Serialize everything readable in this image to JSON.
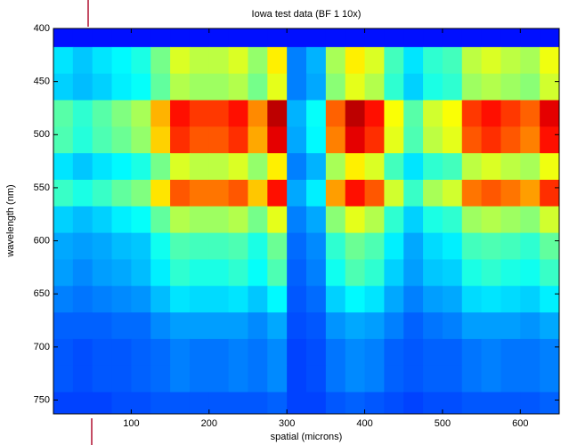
{
  "chart_data": {
    "type": "heatmap",
    "title": "Iowa test data (BF 1 10x)",
    "x_label": "spatial (microns)",
    "y_label": "wavelength (nm)",
    "colormap": "jet",
    "y_reversed": true,
    "xlim": [
      0,
      650
    ],
    "ylim": [
      400,
      763
    ],
    "xticks": [
      100,
      200,
      300,
      400,
      500,
      600
    ],
    "yticks": [
      400,
      450,
      500,
      550,
      600,
      650,
      700,
      750
    ],
    "x": [
      12.5,
      37.5,
      62.5,
      87.5,
      112.5,
      137.5,
      162.5,
      187.5,
      212.5,
      237.5,
      262.5,
      287.5,
      312.5,
      337.5,
      362.5,
      387.5,
      412.5,
      437.5,
      462.5,
      487.5,
      512.5,
      537.5,
      562.5,
      587.5,
      612.5,
      637.5
    ],
    "y": [
      405,
      430,
      455,
      480,
      505,
      530,
      555,
      580,
      605,
      630,
      655,
      680,
      705,
      730,
      755
    ],
    "z": [
      [
        0.14,
        0.14,
        0.14,
        0.14,
        0.14,
        0.14,
        0.14,
        0.14,
        0.14,
        0.14,
        0.14,
        0.14,
        0.14,
        0.14,
        0.14,
        0.14,
        0.14,
        0.14,
        0.14,
        0.14,
        0.14,
        0.14,
        0.14,
        0.14,
        0.14,
        0.14
      ],
      [
        0.35,
        0.32,
        0.35,
        0.37,
        0.4,
        0.49,
        0.59,
        0.56,
        0.56,
        0.59,
        0.52,
        0.64,
        0.25,
        0.3,
        0.54,
        0.64,
        0.59,
        0.44,
        0.35,
        0.42,
        0.44,
        0.56,
        0.59,
        0.56,
        0.54,
        0.61
      ],
      [
        0.33,
        0.31,
        0.33,
        0.36,
        0.38,
        0.47,
        0.55,
        0.53,
        0.53,
        0.55,
        0.49,
        0.6,
        0.25,
        0.29,
        0.51,
        0.6,
        0.55,
        0.42,
        0.33,
        0.4,
        0.42,
        0.53,
        0.55,
        0.53,
        0.51,
        0.58
      ],
      [
        0.46,
        0.42,
        0.46,
        0.5,
        0.54,
        0.7,
        0.86,
        0.82,
        0.82,
        0.86,
        0.74,
        0.94,
        0.3,
        0.38,
        0.78,
        0.94,
        0.86,
        0.62,
        0.46,
        0.58,
        0.62,
        0.82,
        0.86,
        0.82,
        0.78,
        0.9
      ],
      [
        0.45,
        0.41,
        0.45,
        0.48,
        0.52,
        0.67,
        0.83,
        0.79,
        0.79,
        0.83,
        0.71,
        0.9,
        0.29,
        0.37,
        0.75,
        0.9,
        0.83,
        0.6,
        0.45,
        0.56,
        0.6,
        0.79,
        0.83,
        0.79,
        0.75,
        0.86
      ],
      [
        0.35,
        0.32,
        0.35,
        0.37,
        0.4,
        0.49,
        0.59,
        0.56,
        0.56,
        0.59,
        0.52,
        0.64,
        0.25,
        0.3,
        0.54,
        0.64,
        0.59,
        0.44,
        0.35,
        0.42,
        0.44,
        0.56,
        0.59,
        0.56,
        0.54,
        0.61
      ],
      [
        0.43,
        0.4,
        0.43,
        0.47,
        0.5,
        0.65,
        0.79,
        0.76,
        0.76,
        0.79,
        0.68,
        0.86,
        0.29,
        0.36,
        0.72,
        0.86,
        0.79,
        0.58,
        0.43,
        0.54,
        0.58,
        0.76,
        0.79,
        0.76,
        0.72,
        0.83
      ],
      [
        0.33,
        0.31,
        0.33,
        0.36,
        0.38,
        0.47,
        0.55,
        0.53,
        0.53,
        0.55,
        0.49,
        0.6,
        0.25,
        0.29,
        0.51,
        0.6,
        0.55,
        0.42,
        0.33,
        0.4,
        0.42,
        0.53,
        0.55,
        0.53,
        0.51,
        0.58
      ],
      [
        0.29,
        0.28,
        0.29,
        0.31,
        0.32,
        0.39,
        0.45,
        0.44,
        0.44,
        0.45,
        0.4,
        0.48,
        0.23,
        0.26,
        0.42,
        0.48,
        0.45,
        0.36,
        0.29,
        0.34,
        0.36,
        0.44,
        0.45,
        0.44,
        0.42,
        0.47
      ],
      [
        0.28,
        0.26,
        0.28,
        0.29,
        0.31,
        0.36,
        0.42,
        0.4,
        0.4,
        0.42,
        0.38,
        0.45,
        0.22,
        0.25,
        0.39,
        0.45,
        0.42,
        0.33,
        0.28,
        0.32,
        0.33,
        0.4,
        0.42,
        0.4,
        0.39,
        0.43
      ],
      [
        0.25,
        0.24,
        0.25,
        0.26,
        0.27,
        0.31,
        0.35,
        0.34,
        0.34,
        0.35,
        0.32,
        0.37,
        0.21,
        0.23,
        0.33,
        0.37,
        0.35,
        0.29,
        0.25,
        0.28,
        0.29,
        0.34,
        0.35,
        0.34,
        0.33,
        0.36
      ],
      [
        0.22,
        0.22,
        0.22,
        0.23,
        0.23,
        0.26,
        0.28,
        0.28,
        0.28,
        0.28,
        0.26,
        0.29,
        0.2,
        0.21,
        0.27,
        0.29,
        0.28,
        0.25,
        0.22,
        0.24,
        0.25,
        0.28,
        0.28,
        0.28,
        0.27,
        0.29
      ],
      [
        0.21,
        0.2,
        0.21,
        0.21,
        0.22,
        0.23,
        0.25,
        0.24,
        0.24,
        0.25,
        0.24,
        0.26,
        0.19,
        0.2,
        0.24,
        0.26,
        0.25,
        0.22,
        0.21,
        0.22,
        0.22,
        0.24,
        0.25,
        0.24,
        0.24,
        0.25
      ],
      [
        0.21,
        0.2,
        0.21,
        0.21,
        0.22,
        0.23,
        0.25,
        0.24,
        0.24,
        0.25,
        0.24,
        0.26,
        0.19,
        0.2,
        0.24,
        0.26,
        0.25,
        0.22,
        0.21,
        0.22,
        0.22,
        0.24,
        0.25,
        0.24,
        0.24,
        0.25
      ],
      [
        0.19,
        0.19,
        0.19,
        0.2,
        0.2,
        0.21,
        0.21,
        0.21,
        0.21,
        0.21,
        0.21,
        0.22,
        0.19,
        0.19,
        0.21,
        0.22,
        0.21,
        0.2,
        0.19,
        0.2,
        0.2,
        0.21,
        0.21,
        0.21,
        0.21,
        0.22
      ]
    ]
  }
}
